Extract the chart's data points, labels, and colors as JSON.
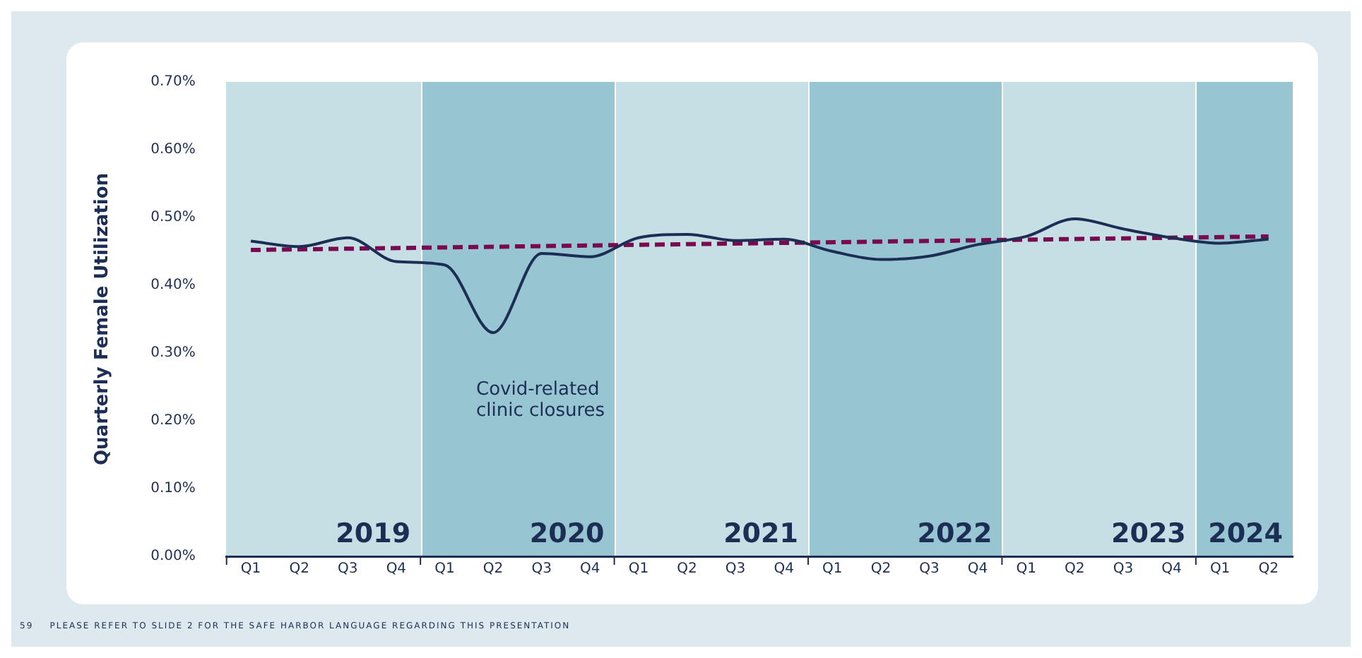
{
  "chart_data": {
    "type": "line",
    "ylabel": "Quarterly Female Utilization",
    "categories": [
      "Q1",
      "Q2",
      "Q3",
      "Q4",
      "Q1",
      "Q2",
      "Q3",
      "Q4",
      "Q1",
      "Q2",
      "Q3",
      "Q4",
      "Q1",
      "Q2",
      "Q3",
      "Q4",
      "Q1",
      "Q2",
      "Q3",
      "Q4",
      "Q1",
      "Q2"
    ],
    "series": [
      {
        "color": "#1d2e55",
        "line_style": "solid",
        "values": [
          0.465,
          0.457,
          0.47,
          0.435,
          0.43,
          0.33,
          0.447,
          0.442,
          0.47,
          0.475,
          0.466,
          0.468,
          0.45,
          0.438,
          0.443,
          0.46,
          0.472,
          0.498,
          0.483,
          0.47,
          0.462,
          0.468
        ]
      },
      {
        "color": "#7a0a4f",
        "line_style": "dashed",
        "values": [
          0.452,
          null,
          null,
          null,
          null,
          null,
          null,
          null,
          null,
          null,
          null,
          null,
          null,
          null,
          null,
          null,
          null,
          null,
          null,
          null,
          null,
          0.472
        ]
      }
    ],
    "ylim": [
      0,
      0.7
    ],
    "yticks": [
      {
        "value": 0,
        "label": "0.00%"
      },
      {
        "value": 0.1,
        "label": "0.10%"
      },
      {
        "value": 0.2,
        "label": "0.20%"
      },
      {
        "value": 0.3,
        "label": "0.30%"
      },
      {
        "value": 0.4,
        "label": "0.40%"
      },
      {
        "value": 0.5,
        "label": "0.50%"
      },
      {
        "value": 0.6,
        "label": "0.60%"
      },
      {
        "value": 0.7,
        "label": "0.70%"
      }
    ],
    "annotations": [
      "Covid-related\nclinic closures",
      "2019",
      "2020",
      "2021",
      "2022",
      "2023",
      "2024",
      "59    PLEASE REFER TO SLIDE 2 FOR THE SAFE HARBOR LANGUAGE REGARDING THIS PRESENTATION"
    ],
    "grid": false,
    "legend": false,
    "marker": "none"
  }
}
